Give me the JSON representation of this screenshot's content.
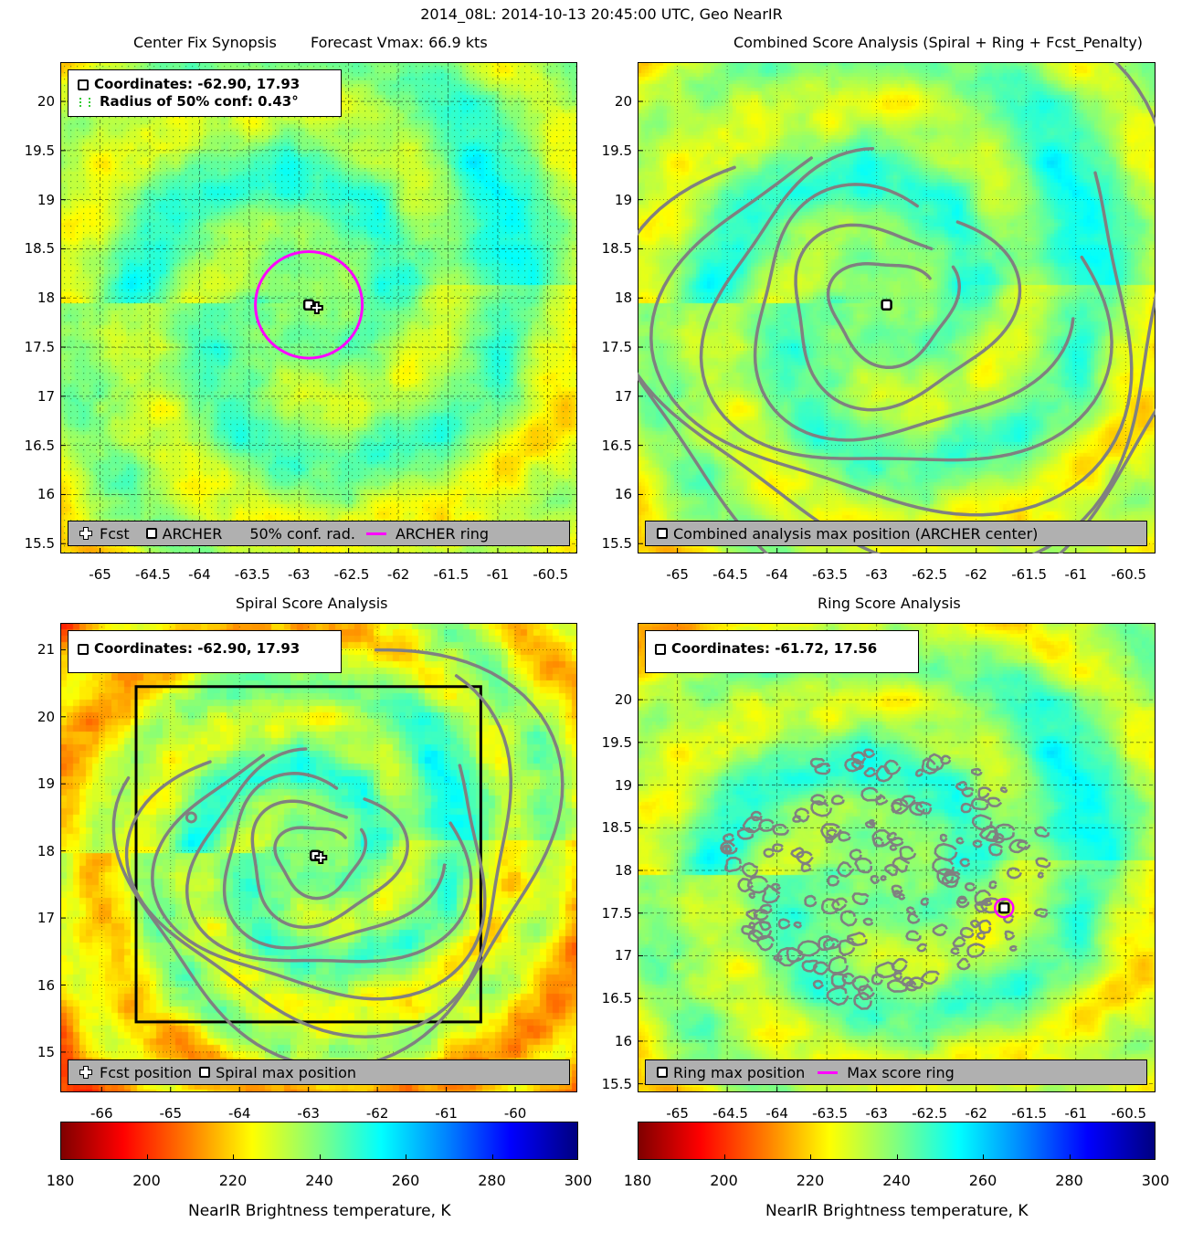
{
  "main_title": "2014_08L: 2014-10-13 20:45:00 UTC, Geo NearIR",
  "chart_data": [
    {
      "type": "heatmap",
      "title": "Center Fix Synopsis",
      "subtitle": "Forecast Vmax: 66.9 kts",
      "xlim": [
        -65.4,
        -60.2
      ],
      "ylim": [
        15.4,
        20.4
      ],
      "xticks": [
        "-65",
        "-64.5",
        "-64",
        "-63.5",
        "-63",
        "-62.5",
        "-62",
        "-61.5",
        "-61",
        "-60.5"
      ],
      "yticks": [
        "20",
        "19.5",
        "19",
        "18.5",
        "18",
        "17.5",
        "17",
        "16.5",
        "16",
        "15.5"
      ],
      "info": {
        "line1": "Coordinates: -62.90, 17.93",
        "line2": "Radius of 50% conf: 0.43°"
      },
      "center": [
        -62.9,
        17.93
      ],
      "forecast": [
        -62.82,
        17.9
      ],
      "conf_radius_deg": 0.43,
      "legend": [
        "Fcst",
        "ARCHER",
        "50% conf. rad.",
        "ARCHER ring"
      ]
    },
    {
      "type": "heatmap",
      "title": "Combined Score Analysis (Spiral + Ring + Fcst_Penalty)",
      "xlim": [
        -65.4,
        -60.2
      ],
      "ylim": [
        15.4,
        20.4
      ],
      "xticks": [
        "-65",
        "-64.5",
        "-64",
        "-63.5",
        "-63",
        "-62.5",
        "-62",
        "-61.5",
        "-61",
        "-60.5"
      ],
      "yticks": [
        "20",
        "19.5",
        "19",
        "18.5",
        "18",
        "17.5",
        "17",
        "16.5",
        "16",
        "15.5"
      ],
      "center": [
        -62.9,
        17.93
      ],
      "legend": [
        "Combined analysis max position (ARCHER center)"
      ]
    },
    {
      "type": "heatmap",
      "title": "Spiral Score Analysis",
      "xlim": [
        -66.6,
        -59.1
      ],
      "ylim": [
        14.4,
        21.4
      ],
      "xticks": [
        "-66",
        "-65",
        "-64",
        "-63",
        "-62",
        "-61",
        "-60"
      ],
      "yticks": [
        "21",
        "20",
        "19",
        "18",
        "17",
        "16",
        "15"
      ],
      "info": {
        "line1": "Coordinates: -62.90, 17.93"
      },
      "center": [
        -62.9,
        17.93
      ],
      "forecast": [
        -62.82,
        17.9
      ],
      "legend": [
        "Fcst position",
        "Spiral max position"
      ]
    },
    {
      "type": "heatmap",
      "title": "Ring Score Analysis",
      "xlim": [
        -65.4,
        -60.2
      ],
      "ylim": [
        15.4,
        20.9
      ],
      "xticks": [
        "-65",
        "-64.5",
        "-64",
        "-63.5",
        "-63",
        "-62.5",
        "-62",
        "-61.5",
        "-61",
        "-60.5"
      ],
      "yticks": [
        "20",
        "19.5",
        "19",
        "18.5",
        "18",
        "17.5",
        "17",
        "16.5",
        "16",
        "15.5"
      ],
      "info": {
        "line1": "Coordinates: -61.72, 17.56"
      },
      "center": [
        -61.72,
        17.56
      ],
      "legend": [
        "Ring max position",
        "Max score ring"
      ]
    }
  ],
  "colorbar": {
    "ticks": [
      "180",
      "200",
      "220",
      "240",
      "260",
      "280",
      "300"
    ],
    "label": "NearIR Brightness temperature, K"
  },
  "colors": {
    "ring": "#ff00ff",
    "contour": "#808080",
    "legend_bg": "#b0b0b0"
  }
}
